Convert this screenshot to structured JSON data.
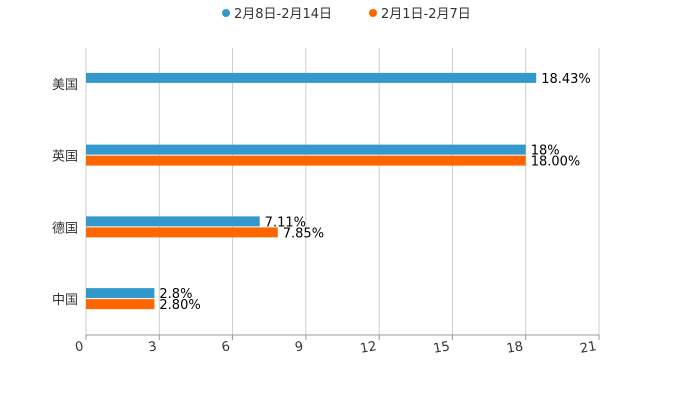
{
  "chart_data": {
    "type": "bar",
    "orientation": "horizontal",
    "title": "",
    "categories": [
      "美国",
      "英国",
      "德国",
      "中国"
    ],
    "series": [
      {
        "name": "2月8日-2月14日",
        "color": "#3399cc",
        "values": [
          18.43,
          18,
          7.11,
          2.8
        ],
        "labels": [
          "18.43%",
          "18%",
          "7.11%",
          "2.8%"
        ]
      },
      {
        "name": "2月1日-2月7日",
        "color": "#ff6600",
        "values": [
          null,
          18.0,
          7.85,
          2.8
        ],
        "labels": [
          "",
          "18.00%",
          "7.85%",
          "2.80%"
        ]
      }
    ],
    "xticks": [
      "0",
      "3",
      "6",
      "9",
      "12",
      "15",
      "18",
      "21"
    ],
    "xlim": [
      0,
      21
    ],
    "grid": true,
    "legend": "top-center",
    "xlabel": "",
    "ylabel": ""
  }
}
